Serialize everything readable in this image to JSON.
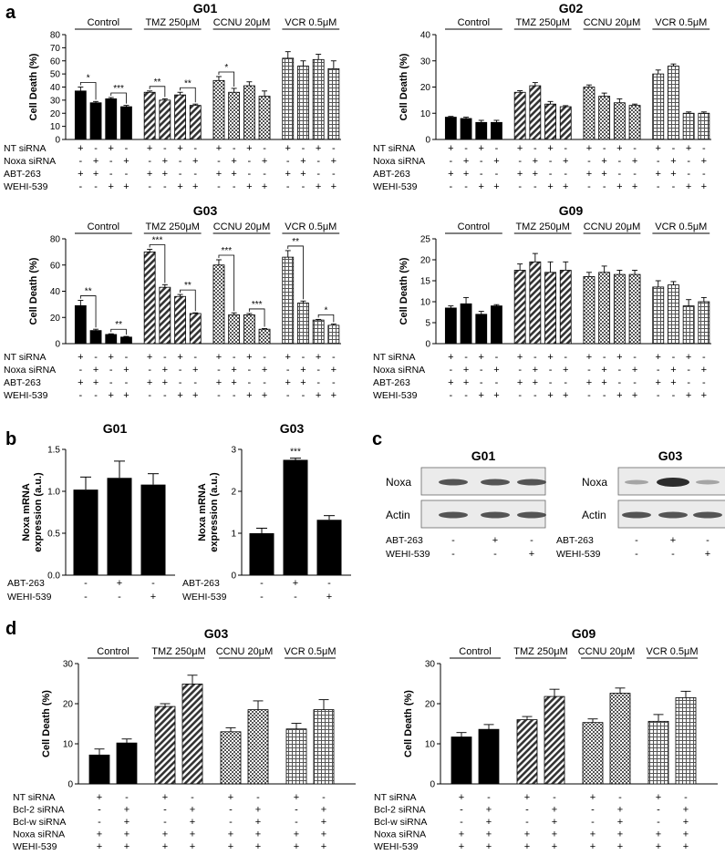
{
  "patterns": {
    "solid": "#000000",
    "diag": "#4a4a4a",
    "check": "#888888",
    "grid": "#9a9a9a"
  },
  "panel_a": {
    "letter": "a",
    "row_labels": [
      "NT siRNA",
      "Noxa siRNA",
      "ABT-263",
      "WEHI-539"
    ],
    "signs": [
      [
        "+",
        "-",
        "+",
        "-"
      ],
      [
        "-",
        "+",
        "-",
        "+"
      ],
      [
        "+",
        "+",
        "-",
        "-"
      ],
      [
        "-",
        "-",
        "+",
        "+"
      ]
    ]
  },
  "panel_b": {
    "letter": "b",
    "row_labels": [
      "ABT-263",
      "WEHI-539"
    ],
    "signs": [
      [
        "-",
        "+",
        "-"
      ],
      [
        "-",
        "-",
        "+"
      ]
    ]
  },
  "panel_c": {
    "letter": "c",
    "row_labels": [
      "ABT-263",
      "WEHI-539"
    ],
    "signs": [
      [
        "-",
        "+",
        "-"
      ],
      [
        "-",
        "-",
        "+"
      ]
    ],
    "blots": [
      {
        "title": "G01",
        "bands": [
          "Noxa",
          "Actin"
        ]
      },
      {
        "title": "G03",
        "bands": [
          "Noxa",
          "Actin"
        ]
      }
    ]
  },
  "panel_d": {
    "letter": "d",
    "row_labels": [
      "NT siRNA",
      "Bcl-2 siRNA",
      "Bcl-w siRNA",
      "Noxa siRNA",
      "WEHI-539"
    ],
    "signs": [
      [
        "+",
        "-"
      ],
      [
        "-",
        "+"
      ],
      [
        "-",
        "+"
      ],
      [
        "+",
        "+"
      ],
      [
        "+",
        "+"
      ]
    ]
  },
  "chart_data": [
    {
      "type": "bar",
      "panel": "a",
      "title": "G01",
      "ylabel": "Cell Death (%)",
      "ylim": [
        0,
        80
      ],
      "yticks": [
        "0",
        "10",
        "20",
        "30",
        "40",
        "50",
        "60",
        "70",
        "80"
      ],
      "groups": [
        "Control",
        "TMZ 250μM",
        "CCNU 20μM",
        "VCR 0.5μM"
      ],
      "values": [
        [
          37,
          28,
          31,
          25
        ],
        [
          36,
          30,
          34,
          26
        ],
        [
          45,
          36,
          41,
          33
        ],
        [
          62,
          56,
          61,
          54
        ]
      ],
      "errors": [
        [
          3,
          1,
          1,
          1
        ],
        [
          1,
          1,
          2,
          1
        ],
        [
          3,
          3,
          3,
          4
        ],
        [
          5,
          4,
          4,
          6
        ]
      ],
      "sig": [
        {
          "g": 0,
          "i": 0,
          "j": 1,
          "label": "*"
        },
        {
          "g": 0,
          "i": 2,
          "j": 3,
          "label": "***"
        },
        {
          "g": 1,
          "i": 0,
          "j": 1,
          "label": "**"
        },
        {
          "g": 1,
          "i": 2,
          "j": 3,
          "label": "**"
        },
        {
          "g": 2,
          "i": 0,
          "j": 1,
          "label": "*"
        }
      ]
    },
    {
      "type": "bar",
      "panel": "a",
      "title": "G02",
      "ylabel": "Cell Death (%)",
      "ylim": [
        0,
        40
      ],
      "yticks": [
        "0",
        "10",
        "20",
        "30",
        "40"
      ],
      "groups": [
        "Control",
        "TMZ 250μM",
        "CCNU 20μM",
        "VCR 0.5μM"
      ],
      "values": [
        [
          8.5,
          8,
          6.5,
          6.5
        ],
        [
          18,
          20.5,
          13.5,
          12.5
        ],
        [
          20,
          16.5,
          14,
          13
        ],
        [
          25,
          28,
          10,
          10
        ]
      ],
      "errors": [
        [
          0.3,
          0.5,
          0.8,
          0.8
        ],
        [
          0.6,
          1.2,
          1,
          0.4
        ],
        [
          0.8,
          1.2,
          1.5,
          0.5
        ],
        [
          1.5,
          0.8,
          0.5,
          0.5
        ]
      ],
      "sig": []
    },
    {
      "type": "bar",
      "panel": "a",
      "title": "G03",
      "ylabel": "Cell Death (%)",
      "ylim": [
        0,
        80
      ],
      "yticks": [
        "0",
        "20",
        "40",
        "60",
        "80"
      ],
      "groups": [
        "Control",
        "TMZ 250μM",
        "CCNU 20μM",
        "VCR 0.5μM"
      ],
      "values": [
        [
          29,
          10,
          7,
          5
        ],
        [
          70,
          43,
          36,
          23
        ],
        [
          60,
          22,
          22,
          11
        ],
        [
          66,
          31,
          18,
          14
        ]
      ],
      "errors": [
        [
          4,
          1,
          0.5,
          0.5
        ],
        [
          2,
          2,
          1.5,
          0.5
        ],
        [
          4,
          1.5,
          1,
          0.5
        ],
        [
          5,
          1.5,
          0.5,
          1
        ]
      ],
      "sig": [
        {
          "g": 0,
          "i": 0,
          "j": 1,
          "label": "**"
        },
        {
          "g": 0,
          "i": 2,
          "j": 3,
          "label": "**"
        },
        {
          "g": 1,
          "i": 0,
          "j": 1,
          "label": "***"
        },
        {
          "g": 1,
          "i": 2,
          "j": 3,
          "label": "**"
        },
        {
          "g": 2,
          "i": 0,
          "j": 1,
          "label": "***"
        },
        {
          "g": 2,
          "i": 2,
          "j": 3,
          "label": "***"
        },
        {
          "g": 3,
          "i": 0,
          "j": 1,
          "label": "**"
        },
        {
          "g": 3,
          "i": 2,
          "j": 3,
          "label": "*"
        }
      ]
    },
    {
      "type": "bar",
      "panel": "a",
      "title": "G09",
      "ylabel": "Cell Death (%)",
      "ylim": [
        0,
        25
      ],
      "yticks": [
        "0",
        "5",
        "10",
        "15",
        "20",
        "25"
      ],
      "groups": [
        "Control",
        "TMZ 250μM",
        "CCNU 20μM",
        "VCR 0.5μM"
      ],
      "values": [
        [
          8.5,
          9.5,
          7,
          9
        ],
        [
          17.5,
          19.5,
          17,
          17.5
        ],
        [
          16,
          17,
          16.5,
          16.5
        ],
        [
          13.5,
          14,
          9,
          10
        ]
      ],
      "errors": [
        [
          0.5,
          1.5,
          0.7,
          0.3
        ],
        [
          1.5,
          2,
          2.5,
          2
        ],
        [
          1,
          1.5,
          1,
          1
        ],
        [
          1.5,
          0.8,
          1.5,
          1
        ]
      ],
      "sig": []
    },
    {
      "type": "bar",
      "panel": "b",
      "title": "G01",
      "ylabel": "Noxa mRNA expression (a.u.)",
      "ylim": [
        0,
        1.5
      ],
      "yticks": [
        "0.0",
        "0.5",
        "1.0",
        "1.5"
      ],
      "values": [
        1.02,
        1.16,
        1.08
      ],
      "errors": [
        0.15,
        0.2,
        0.13
      ],
      "stars": [
        "",
        "",
        ""
      ]
    },
    {
      "type": "bar",
      "panel": "b",
      "title": "G03",
      "ylabel": "Noxa mRNA expression (a.u.)",
      "ylim": [
        0,
        3
      ],
      "yticks": [
        "0",
        "1",
        "2",
        "3"
      ],
      "values": [
        1.0,
        2.75,
        1.32
      ],
      "errors": [
        0.12,
        0.04,
        0.1
      ],
      "stars": [
        "",
        "***",
        ""
      ]
    },
    {
      "type": "bar",
      "panel": "d",
      "title": "G03",
      "ylabel": "Cell Death (%)",
      "ylim": [
        0,
        30
      ],
      "yticks": [
        "0",
        "10",
        "20",
        "30"
      ],
      "groups": [
        "Control",
        "TMZ 250μM",
        "CCNU 20μM",
        "VCR 0.5μM"
      ],
      "values": [
        [
          7.2,
          10.2
        ],
        [
          19.3,
          24.9
        ],
        [
          13,
          18.5
        ],
        [
          13.7,
          18.5
        ]
      ],
      "errors": [
        [
          1.5,
          1
        ],
        [
          0.7,
          2.2
        ],
        [
          1,
          2.2
        ],
        [
          1.4,
          2.5
        ]
      ]
    },
    {
      "type": "bar",
      "panel": "d",
      "title": "G09",
      "ylabel": "Cell Death (%)",
      "ylim": [
        0,
        30
      ],
      "yticks": [
        "0",
        "10",
        "20",
        "30"
      ],
      "groups": [
        "Control",
        "TMZ 250μM",
        "CCNU 20μM",
        "VCR 0.5μM"
      ],
      "values": [
        [
          11.7,
          13.6
        ],
        [
          16,
          21.8
        ],
        [
          15.3,
          22.6
        ],
        [
          15.6,
          21.5
        ]
      ],
      "errors": [
        [
          1.1,
          1.2
        ],
        [
          0.8,
          1.8
        ],
        [
          0.9,
          1.3
        ],
        [
          1.7,
          1.6
        ]
      ]
    }
  ]
}
